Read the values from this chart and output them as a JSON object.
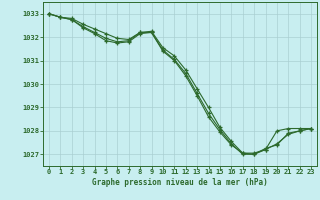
{
  "title": "Graphe pression niveau de la mer (hPa)",
  "background_color": "#c8eef0",
  "grid_color": "#b8d8da",
  "line_color": "#2d6a2d",
  "xlim": [
    -0.5,
    23.5
  ],
  "ylim": [
    1026.5,
    1033.5
  ],
  "yticks": [
    1027,
    1028,
    1029,
    1030,
    1031,
    1032,
    1033
  ],
  "xticks": [
    0,
    1,
    2,
    3,
    4,
    5,
    6,
    7,
    8,
    9,
    10,
    11,
    12,
    13,
    14,
    15,
    16,
    17,
    18,
    19,
    20,
    21,
    22,
    23
  ],
  "series": [
    {
      "x": [
        0,
        1,
        2,
        3,
        4,
        5,
        6,
        7,
        8,
        9,
        10,
        11,
        12,
        13,
        14,
        15,
        16,
        17,
        18,
        19,
        20,
        21,
        22,
        23
      ],
      "y": [
        1033.0,
        1032.85,
        1032.8,
        1032.55,
        1032.35,
        1032.15,
        1031.95,
        1031.9,
        1032.2,
        1032.25,
        1031.55,
        1031.2,
        1030.6,
        1029.8,
        1029.0,
        1028.15,
        1027.55,
        1027.05,
        1027.05,
        1027.2,
        1028.0,
        1028.1,
        1028.1,
        1028.1
      ]
    },
    {
      "x": [
        0,
        1,
        2,
        3,
        4,
        5,
        6,
        7,
        8,
        9,
        10,
        11,
        12,
        13,
        14,
        15,
        16,
        17,
        18,
        19,
        20,
        21,
        22,
        23
      ],
      "y": [
        1033.0,
        1032.85,
        1032.75,
        1032.45,
        1032.2,
        1031.95,
        1031.8,
        1031.85,
        1032.2,
        1032.2,
        1031.45,
        1031.05,
        1030.45,
        1029.6,
        1028.75,
        1028.05,
        1027.45,
        1027.0,
        1027.0,
        1027.2,
        1027.45,
        1027.85,
        1028.0,
        1028.1
      ]
    },
    {
      "x": [
        0,
        1,
        2,
        3,
        4,
        5,
        6,
        7,
        8,
        9,
        10,
        11,
        12,
        13,
        14,
        15,
        16,
        17,
        18,
        19,
        20,
        21,
        22,
        23
      ],
      "y": [
        1033.0,
        1032.85,
        1032.75,
        1032.4,
        1032.15,
        1031.85,
        1031.75,
        1031.8,
        1032.15,
        1032.2,
        1031.4,
        1031.0,
        1030.35,
        1029.5,
        1028.6,
        1027.95,
        1027.4,
        1027.05,
        1027.0,
        1027.25,
        1027.4,
        1027.9,
        1028.0,
        1028.1
      ]
    }
  ]
}
